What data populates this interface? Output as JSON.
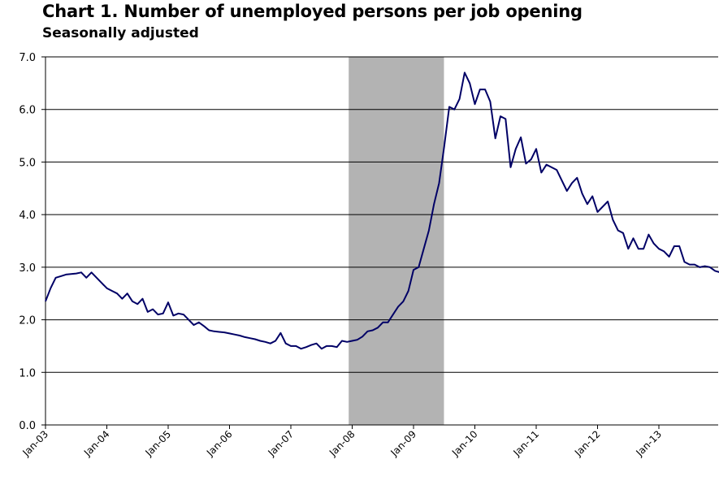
{
  "chart_data": {
    "type": "line",
    "title": "Chart 1. Number of unemployed persons per job opening",
    "subtitle": "Seasonally adjusted",
    "xlabel": "",
    "ylabel": "",
    "ylim": [
      0,
      7
    ],
    "yticks": [
      "0.0",
      "1.0",
      "2.0",
      "3.0",
      "4.0",
      "5.0",
      "6.0",
      "7.0"
    ],
    "xticks": [
      "Jan-03",
      "Jan-04",
      "Jan-05",
      "Jan-06",
      "Jan-07",
      "Jan-08",
      "Jan-09",
      "Jan-10",
      "Jan-11",
      "Jan-12",
      "Jan-13"
    ],
    "grid": "horizontal",
    "recession_shading": {
      "start": "Dec-07",
      "end": "Jun-09",
      "color": "#b3b3b3"
    },
    "line_color": "#000066",
    "start": "Jan-03",
    "series": [
      {
        "values": [
          2.35,
          2.6,
          2.8,
          2.83,
          2.86,
          2.87,
          2.88,
          2.9,
          2.8,
          2.9,
          2.8,
          2.7,
          2.6,
          2.55,
          2.5,
          2.4,
          2.5,
          2.35,
          2.3,
          2.4,
          2.15,
          2.2,
          2.1,
          2.12,
          2.33,
          2.08,
          2.12,
          2.1,
          2.0,
          1.9,
          1.95,
          1.88,
          1.8,
          1.78,
          1.77,
          1.76,
          1.74,
          1.72,
          1.7,
          1.67,
          1.65,
          1.63,
          1.6,
          1.58,
          1.55,
          1.6,
          1.75,
          1.55,
          1.5,
          1.5,
          1.45,
          1.48,
          1.52,
          1.55,
          1.45,
          1.5,
          1.5,
          1.48,
          1.6,
          1.58,
          1.6,
          1.62,
          1.68,
          1.78,
          1.8,
          1.85,
          1.95,
          1.95,
          2.1,
          2.25,
          2.35,
          2.55,
          2.95,
          3.0,
          3.35,
          3.7,
          4.2,
          4.6,
          5.3,
          6.05,
          6.0,
          6.2,
          6.7,
          6.5,
          6.1,
          6.38,
          6.38,
          6.15,
          5.45,
          5.87,
          5.82,
          4.9,
          5.25,
          5.47,
          4.97,
          5.05,
          5.25,
          4.8,
          4.95,
          4.9,
          4.85,
          4.65,
          4.45,
          4.6,
          4.7,
          4.4,
          4.2,
          4.35,
          4.05,
          4.15,
          4.25,
          3.9,
          3.7,
          3.65,
          3.35,
          3.55,
          3.35,
          3.35,
          3.62,
          3.45,
          3.35,
          3.3,
          3.2,
          3.4,
          3.4,
          3.1,
          3.05,
          3.05,
          3.0,
          3.02,
          3.0,
          2.93,
          2.9,
          2.85,
          2.7,
          2.6
        ]
      }
    ]
  }
}
